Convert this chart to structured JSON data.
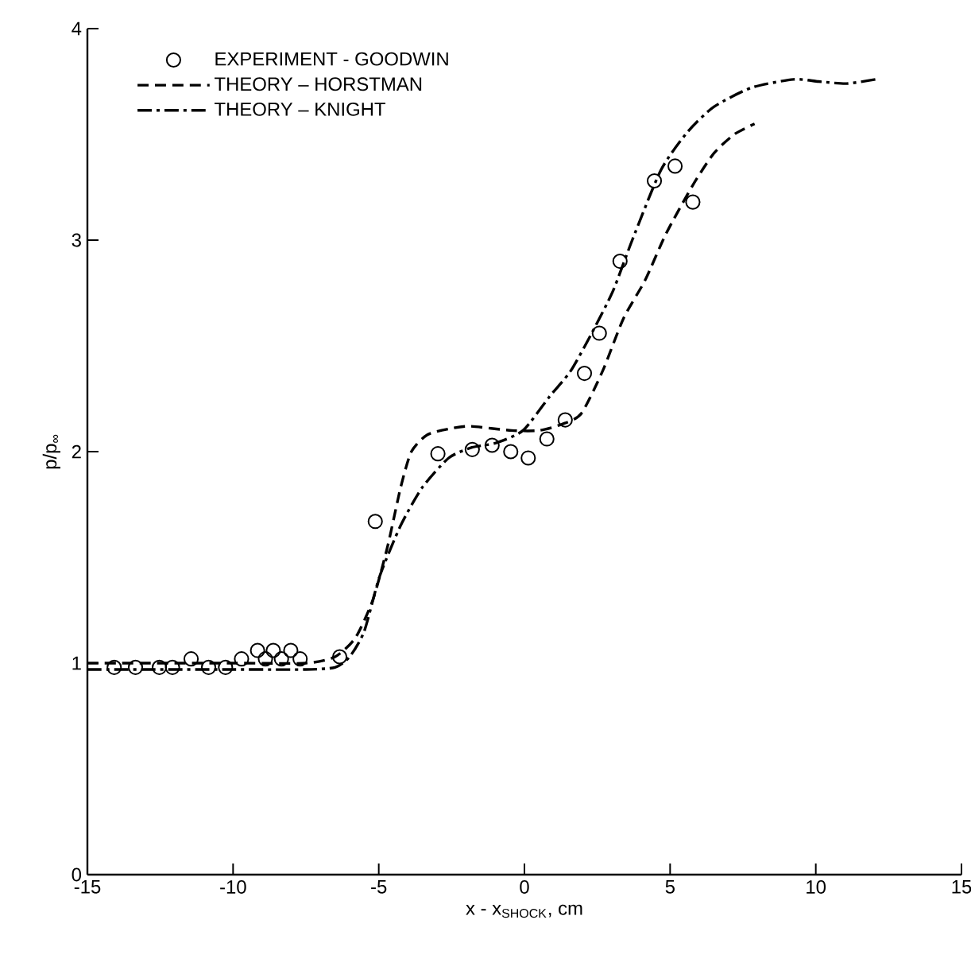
{
  "chart_data": {
    "type": "line",
    "xlabel": "x - x$_{SHOCK}$, cm",
    "ylabel": "p/p$_{∞}$",
    "xlim": [
      -15,
      15
    ],
    "ylim": [
      0,
      4
    ],
    "xticks": [
      -15,
      -10,
      -5,
      0,
      5,
      10,
      15
    ],
    "yticks": [
      0,
      1,
      2,
      3,
      4
    ],
    "grid": false,
    "legend": "top left",
    "series": [
      {
        "name": "EXPERIMENT -  GOODWIN",
        "type": "scatter",
        "marker": "circle",
        "color": "#000000",
        "x": [
          -14.08,
          -13.35,
          -12.53,
          -12.08,
          -11.44,
          -10.84,
          -10.26,
          -9.71,
          -9.16,
          -8.89,
          -8.62,
          -8.34,
          -8.02,
          -7.7,
          -6.34,
          -5.12,
          -2.97,
          -1.79,
          -1.11,
          -0.47,
          0.13,
          0.77,
          1.4,
          2.06,
          2.57,
          3.28,
          4.46,
          5.17,
          5.78
        ],
        "values": [
          0.98,
          0.98,
          0.98,
          0.98,
          1.02,
          0.98,
          0.98,
          1.02,
          1.06,
          1.02,
          1.06,
          1.02,
          1.06,
          1.02,
          1.03,
          1.67,
          1.99,
          2.01,
          2.03,
          2.0,
          1.97,
          2.06,
          2.15,
          2.37,
          2.56,
          2.9,
          3.28,
          3.35,
          3.18
        ]
      },
      {
        "name": "THEORY – HORSTMAN",
        "line_style": "dashed",
        "color": "#000000",
        "x": [
          -15,
          -10,
          -7.5,
          -6.5,
          -5.8,
          -5.2,
          -4.7,
          -4.25,
          -3.88,
          -3.33,
          -2.5,
          -1.87,
          -0.44,
          0.5,
          1.3,
          1.95,
          2.68,
          3.4,
          4.14,
          4.86,
          5.78,
          6.5,
          7.2,
          7.9
        ],
        "values": [
          1.0,
          1.0,
          1.0,
          1.03,
          1.12,
          1.3,
          1.55,
          1.83,
          2.0,
          2.08,
          2.11,
          2.12,
          2.1,
          2.1,
          2.13,
          2.18,
          2.38,
          2.63,
          2.81,
          3.03,
          3.26,
          3.41,
          3.5,
          3.55
        ]
      },
      {
        "name": "THEORY – KNIGHT",
        "line_style": "dashdot",
        "color": "#000000",
        "x": [
          -15,
          -10,
          -7.5,
          -6.5,
          -6.0,
          -5.5,
          -4.97,
          -4.25,
          -3.51,
          -2.6,
          -1.8,
          -1.0,
          -0.05,
          0.86,
          1.58,
          2.31,
          3.04,
          3.7,
          4.68,
          5.59,
          6.5,
          7.78,
          9.23,
          10.1,
          11.05,
          12.06
        ],
        "values": [
          0.97,
          0.97,
          0.97,
          0.98,
          1.03,
          1.15,
          1.41,
          1.65,
          1.83,
          1.97,
          2.02,
          2.04,
          2.1,
          2.26,
          2.38,
          2.56,
          2.76,
          3.0,
          3.33,
          3.51,
          3.63,
          3.72,
          3.76,
          3.75,
          3.74,
          3.76
        ]
      }
    ]
  }
}
